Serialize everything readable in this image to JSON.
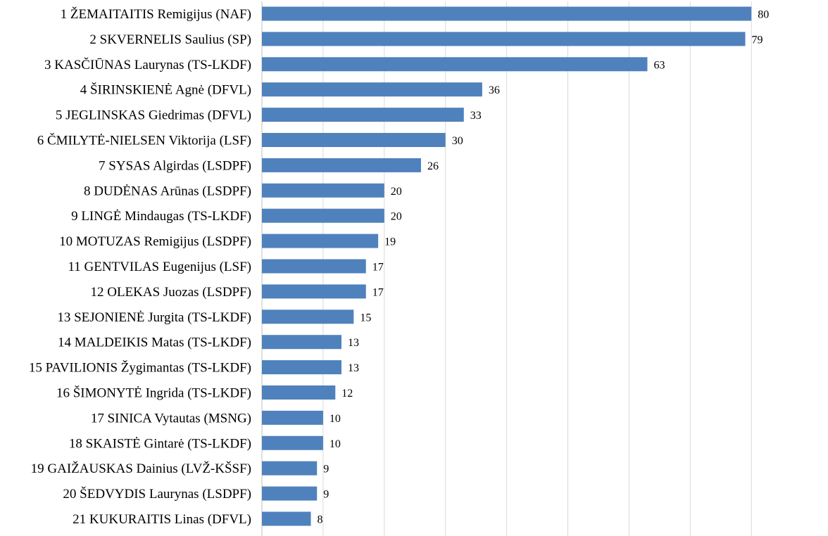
{
  "chart_data": {
    "type": "bar",
    "orientation": "horizontal",
    "categories": [
      "1 ŽEMAITAITIS Remigijus (NAF)",
      "2 SKVERNELIS Saulius (SP)",
      "3 KASČIŪNAS Laurynas (TS-LKDF)",
      "4 ŠIRINSKIENĖ Agnė (DFVL)",
      "5 JEGLINSKAS Giedrimas (DFVL)",
      "6 ČMILYTĖ-NIELSEN Viktorija (LSF)",
      "7 SYSAS Algirdas (LSDPF)",
      "8 DUDĖNAS Arūnas (LSDPF)",
      "9 LINGĖ Mindaugas (TS-LKDF)",
      "10 MOTUZAS Remigijus (LSDPF)",
      "11 GENTVILAS Eugenijus (LSF)",
      "12 OLEKAS Juozas (LSDPF)",
      "13 SEJONIENĖ Jurgita (TS-LKDF)",
      "14 MALDEIKIS Matas (TS-LKDF)",
      "15 PAVILIONIS Žygimantas (TS-LKDF)",
      "16 ŠIMONYTĖ Ingrida (TS-LKDF)",
      "17 SINICA Vytautas (MSNG)",
      "18 SKAISTĖ Gintarė (TS-LKDF)",
      "19 GAIŽAUSKAS Dainius (LVŽ-KŠSF)",
      "20 ŠEDVYDIS Laurynas (LSDPF)",
      "21 KUKURAITIS Linas (DFVL)"
    ],
    "values": [
      80,
      79,
      63,
      36,
      33,
      30,
      26,
      20,
      20,
      19,
      17,
      17,
      15,
      13,
      13,
      12,
      10,
      10,
      9,
      9,
      8
    ],
    "value_labels": [
      "80",
      "79",
      "63",
      "36",
      "33",
      "30",
      "26",
      "20",
      "20",
      "19",
      "17",
      "17",
      "15",
      "13",
      "13",
      "12",
      "10",
      "10",
      "9",
      "9",
      "8"
    ],
    "xlim": [
      0,
      80
    ],
    "grid_step": 10,
    "grid": true,
    "title": "",
    "xlabel": "",
    "ylabel": "",
    "bar_color": "#4f81bd",
    "grid_color": "#d9d9d9",
    "axis_color": "#bfbfbf"
  }
}
